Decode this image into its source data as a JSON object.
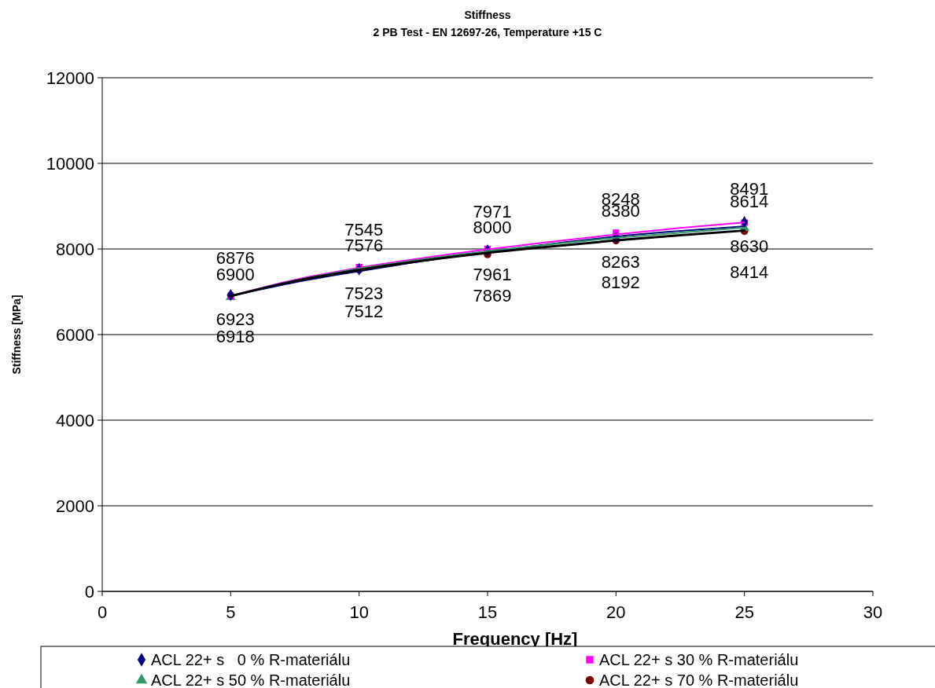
{
  "chart_data": {
    "type": "scatter",
    "title": "Stiffness",
    "subtitle": "2 PB Test - EN 12697-26, Temperature +15 C",
    "xlabel": "Frequency [Hz]",
    "ylabel": "Stiffness [MPa]",
    "xlim": [
      0,
      30
    ],
    "xticks": [
      0,
      5,
      10,
      15,
      20,
      25,
      30
    ],
    "ylim": [
      0,
      12000
    ],
    "yticks": [
      0,
      2000,
      4000,
      6000,
      8000,
      10000,
      12000
    ],
    "grid": "y",
    "legend": "bottom",
    "series": [
      {
        "name": "ACL 22+ s   0 % R-materiálu",
        "color": "#000080",
        "marker": "diamond",
        "x": [
          5,
          10,
          15,
          20,
          25
        ],
        "values": [
          6923,
          7523,
          7961,
          8263,
          8630
        ],
        "value_labels": [
          "6923",
          "7523",
          "7961",
          "8263",
          "8630"
        ]
      },
      {
        "name": "ACL 22+ s 30 % R-materiálu",
        "color": "#ff00ff",
        "marker": "square",
        "x": [
          5,
          10,
          15,
          20,
          25
        ],
        "values": [
          6900,
          7576,
          8000,
          8380,
          8614
        ],
        "value_labels": [
          "6900",
          "7576",
          "8000",
          "8380",
          "8614"
        ]
      },
      {
        "name": "ACL 22+ s 50 % R-materiálu",
        "color": "#339966",
        "marker": "triangle",
        "x": [
          5,
          10,
          15,
          20,
          25
        ],
        "values": [
          6876,
          7545,
          7971,
          8248,
          8491
        ],
        "value_labels": [
          "6876",
          "7545",
          "7971",
          "8248",
          "8491"
        ]
      },
      {
        "name": "ACL 22+ s 70 % R-materiálu",
        "color": "#800000",
        "marker": "circle",
        "x": [
          5,
          10,
          15,
          20,
          25
        ],
        "values": [
          6918,
          7512,
          7869,
          8192,
          8414
        ],
        "value_labels": [
          "6918",
          "7512",
          "7869",
          "8192",
          "8414"
        ]
      },
      {
        "type": "line",
        "color": "#000080",
        "x": [
          5,
          7.5,
          10,
          12.5,
          15,
          17.5,
          20,
          22.5,
          25
        ],
        "values": [
          6900,
          7220,
          7480,
          7720,
          7930,
          8120,
          8290,
          8420,
          8530
        ]
      },
      {
        "type": "line",
        "color": "#ff00ff",
        "x": [
          5,
          7.5,
          10,
          12.5,
          15,
          17.5,
          20,
          22.5,
          25
        ],
        "values": [
          6900,
          7280,
          7560,
          7790,
          7990,
          8170,
          8340,
          8490,
          8620
        ]
      },
      {
        "type": "line",
        "color": "#339966",
        "x": [
          5,
          7.5,
          10,
          12.5,
          15,
          17.5,
          20,
          22.5,
          25
        ],
        "values": [
          6890,
          7260,
          7540,
          7760,
          7950,
          8110,
          8260,
          8380,
          8500
        ]
      },
      {
        "type": "line",
        "color": "#000000",
        "x": [
          5,
          7.5,
          10,
          12.5,
          15,
          17.5,
          20,
          22.5,
          25
        ],
        "values": [
          6900,
          7250,
          7510,
          7730,
          7910,
          8060,
          8200,
          8320,
          8430
        ]
      }
    ]
  }
}
